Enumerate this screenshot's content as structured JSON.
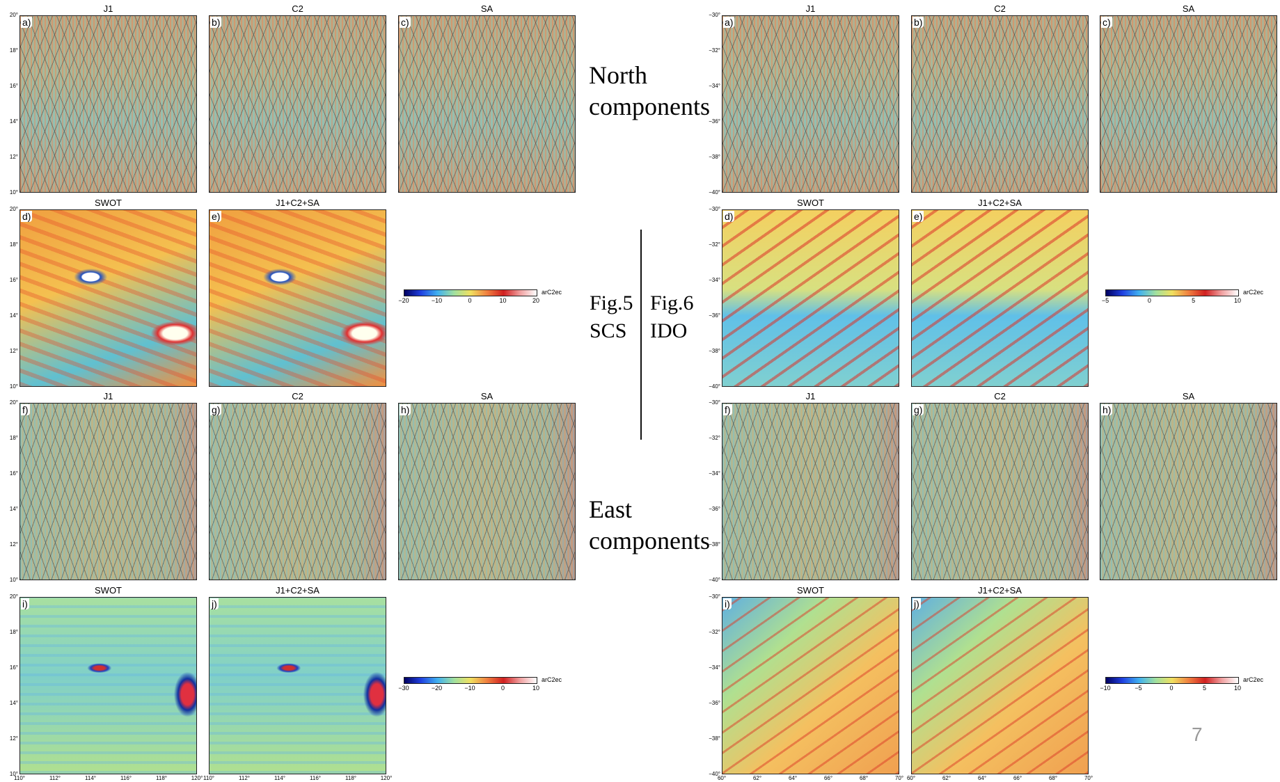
{
  "north_label": [
    "North",
    "components"
  ],
  "east_label": [
    "East",
    "components"
  ],
  "page_number": "7",
  "figures": [
    {
      "label": [
        "Fig.5",
        "SCS"
      ],
      "rows": [
        [
          {
            "letter": "a)",
            "title": "J1"
          },
          {
            "letter": "b)",
            "title": "C2"
          },
          {
            "letter": "c)",
            "title": "SA"
          }
        ],
        [
          {
            "letter": "d)",
            "title": "SWOT"
          },
          {
            "letter": "e)",
            "title": "J1+C2+SA"
          }
        ],
        [
          {
            "letter": "f)",
            "title": "J1"
          },
          {
            "letter": "g)",
            "title": "C2"
          },
          {
            "letter": "h)",
            "title": "SA"
          }
        ],
        [
          {
            "letter": "i)",
            "title": "SWOT"
          },
          {
            "letter": "j)",
            "title": "J1+C2+SA"
          }
        ]
      ],
      "yticks": [
        "20°",
        "18°",
        "16°",
        "14°",
        "12°",
        "10°"
      ],
      "xticks": [
        "110°",
        "112°",
        "114°",
        "116°",
        "118°",
        "120°"
      ],
      "colorbars": [
        {
          "ticks": [
            "−20",
            "−10",
            "0",
            "10",
            "20"
          ],
          "unit": "arC2ec"
        },
        {
          "ticks": [
            "−30",
            "−20",
            "−10",
            "0",
            "10"
          ],
          "unit": "arC2ec"
        }
      ]
    },
    {
      "label": [
        "Fig.6",
        "IDO"
      ],
      "rows": [
        [
          {
            "letter": "a)",
            "title": "J1"
          },
          {
            "letter": "b)",
            "title": "C2"
          },
          {
            "letter": "c)",
            "title": "SA"
          }
        ],
        [
          {
            "letter": "d)",
            "title": "SWOT"
          },
          {
            "letter": "e)",
            "title": "J1+C2+SA"
          }
        ],
        [
          {
            "letter": "f)",
            "title": "J1"
          },
          {
            "letter": "g)",
            "title": "C2"
          },
          {
            "letter": "h)",
            "title": "SA"
          }
        ],
        [
          {
            "letter": "i)",
            "title": "SWOT"
          },
          {
            "letter": "j)",
            "title": "J1+C2+SA"
          }
        ]
      ],
      "yticks": [
        "−30°",
        "−32°",
        "−34°",
        "−36°",
        "−38°",
        "−40°"
      ],
      "xticks": [
        "60°",
        "62°",
        "64°",
        "66°",
        "68°",
        "70°"
      ],
      "colorbars": [
        {
          "ticks": [
            "−5",
            "0",
            "5",
            "10"
          ],
          "unit": "arC2ec"
        },
        {
          "ticks": [
            "−10",
            "−5",
            "0",
            "5",
            "10"
          ],
          "unit": "arC2ec"
        }
      ]
    }
  ]
}
